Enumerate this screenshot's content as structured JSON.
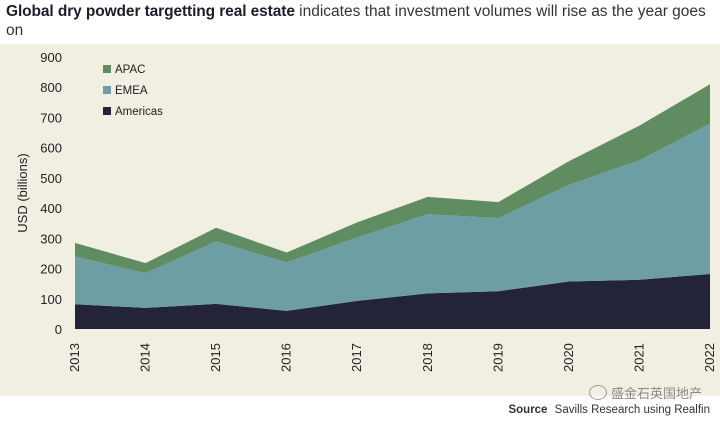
{
  "title": {
    "bold": "Global dry powder targetting real estate",
    "rest": "indicates that investment volumes will rise as the year goes on"
  },
  "source": {
    "label": "Source",
    "text": "Savills Research using Realfin"
  },
  "watermark": "盛金石英国地产",
  "colors": {
    "background": "#f1efe2",
    "americas": "#23233a",
    "emea": "#6c9ea4",
    "apac": "#5f8d61"
  },
  "chart_data": {
    "type": "area",
    "stacked": true,
    "title": "Global dry powder targetting real estate",
    "ylabel": "USD (billions)",
    "xlabel": "",
    "x": [
      "2013",
      "2014",
      "2015",
      "2016",
      "2017",
      "2018",
      "2019",
      "2020",
      "2021",
      "2022"
    ],
    "ylim": [
      0,
      900
    ],
    "yticks": [
      0,
      100,
      200,
      300,
      400,
      500,
      600,
      700,
      800,
      900
    ],
    "grid": false,
    "legend": "top-left",
    "series": [
      {
        "name": "Americas",
        "color": "#23233a",
        "values": [
          82,
          70,
          83,
          60,
          93,
          118,
          125,
          157,
          163,
          182
        ]
      },
      {
        "name": "EMEA",
        "color": "#6c9ea4",
        "values": [
          158,
          115,
          207,
          160,
          210,
          262,
          242,
          320,
          395,
          498
        ]
      },
      {
        "name": "APAC",
        "color": "#5f8d61",
        "values": [
          45,
          33,
          45,
          33,
          50,
          57,
          53,
          78,
          115,
          130
        ]
      }
    ]
  }
}
